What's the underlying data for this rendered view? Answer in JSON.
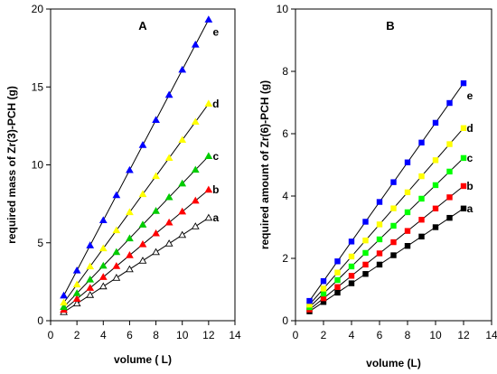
{
  "chart_data": [
    {
      "type": "line",
      "title": "A",
      "xlabel": "volume ( L)",
      "ylabel": "required mass of Zr(3)-PCH (g)",
      "xlim": [
        0,
        14
      ],
      "ylim": [
        0,
        20
      ],
      "xticks": [
        "0",
        "2",
        "4",
        "6",
        "8",
        "10",
        "12",
        "14"
      ],
      "yticks": [
        "0",
        "5",
        "10",
        "15",
        "20"
      ],
      "grid": false,
      "marker": "triangle",
      "x": [
        1,
        2,
        3,
        4,
        5,
        6,
        7,
        8,
        9,
        10,
        11,
        12
      ],
      "series": [
        {
          "label": "a",
          "color": "#000000",
          "filled": false,
          "slope": 0.55
        },
        {
          "label": "b",
          "color": "#ff0000",
          "filled": true,
          "slope": 0.7
        },
        {
          "label": "c",
          "color": "#00cc00",
          "filled": true,
          "slope": 0.88
        },
        {
          "label": "d",
          "color": "#ffff00",
          "filled": true,
          "slope": 1.16
        },
        {
          "label": "e",
          "color": "#0000ff",
          "filled": true,
          "slope": 1.61
        }
      ]
    },
    {
      "type": "line",
      "title": "B",
      "xlabel": "volume (L)",
      "ylabel": "required amount of Zr(6)-PCH (g)",
      "xlim": [
        0,
        14
      ],
      "ylim": [
        0,
        10
      ],
      "xticks": [
        "0",
        "2",
        "4",
        "6",
        "8",
        "10",
        "12",
        "14"
      ],
      "yticks": [
        "0",
        "2",
        "4",
        "6",
        "8",
        "10"
      ],
      "grid": false,
      "marker": "square",
      "x": [
        1,
        2,
        3,
        4,
        5,
        6,
        7,
        8,
        9,
        10,
        11,
        12
      ],
      "series": [
        {
          "label": "a",
          "color": "#000000",
          "filled": true,
          "slope": 0.3
        },
        {
          "label": "b",
          "color": "#ff0000",
          "filled": true,
          "slope": 0.36
        },
        {
          "label": "c",
          "color": "#00ff00",
          "filled": true,
          "slope": 0.435
        },
        {
          "label": "d",
          "color": "#ffff00",
          "filled": true,
          "slope": 0.515
        },
        {
          "label": "e",
          "color": "#0000ff",
          "filled": true,
          "slope": 0.635
        }
      ]
    }
  ]
}
